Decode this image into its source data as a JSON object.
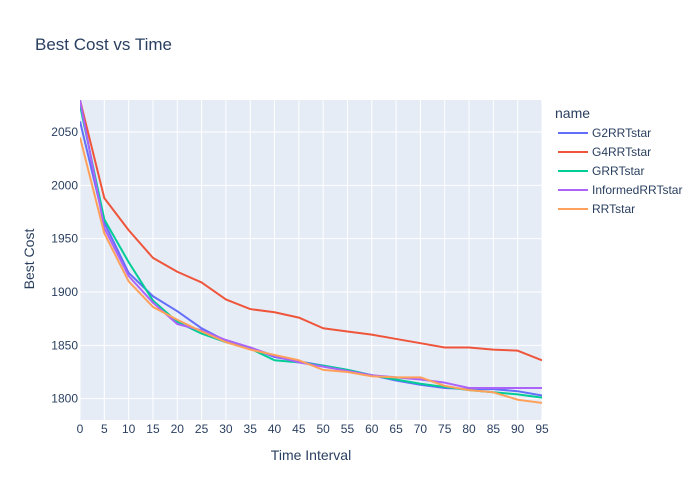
{
  "chart_data": {
    "type": "line",
    "title": "Best Cost vs Time",
    "xlabel": "Time Interval",
    "ylabel": "Best Cost",
    "legend_title": "name",
    "legend_position": "right",
    "grid": true,
    "background_color": "#e5ecf6",
    "xlim": [
      0,
      95
    ],
    "ylim": [
      1780,
      2080
    ],
    "x_ticks": [
      0,
      5,
      10,
      15,
      20,
      25,
      30,
      35,
      40,
      45,
      50,
      55,
      60,
      65,
      70,
      75,
      80,
      85,
      90,
      95
    ],
    "y_ticks": [
      1800,
      1850,
      1900,
      1950,
      2000,
      2050
    ],
    "x": [
      0,
      5,
      10,
      15,
      20,
      25,
      30,
      35,
      40,
      45,
      50,
      55,
      60,
      65,
      70,
      75,
      80,
      85,
      90,
      95
    ],
    "series": [
      {
        "name": "G2RRTstar",
        "color": "#636efa",
        "values": [
          2060,
          1965,
          1918,
          1896,
          1882,
          1866,
          1854,
          1848,
          1839,
          1835,
          1831,
          1827,
          1822,
          1817,
          1813,
          1810,
          1809,
          1809,
          1807,
          1803
        ]
      },
      {
        "name": "G4RRTstar",
        "color": "#ef553b",
        "values": [
          2080,
          1988,
          1958,
          1932,
          1919,
          1909,
          1893,
          1884,
          1881,
          1876,
          1866,
          1863,
          1860,
          1856,
          1852,
          1848,
          1848,
          1846,
          1845,
          1836
        ]
      },
      {
        "name": "GRRTstar",
        "color": "#00cc96",
        "values": [
          2075,
          1968,
          1928,
          1892,
          1872,
          1861,
          1853,
          1847,
          1836,
          1834,
          1831,
          1827,
          1822,
          1818,
          1814,
          1811,
          1808,
          1806,
          1804,
          1801
        ]
      },
      {
        "name": "InformedRRTstar",
        "color": "#ab63fa",
        "values": [
          2080,
          1960,
          1915,
          1890,
          1870,
          1864,
          1855,
          1848,
          1840,
          1834,
          1830,
          1826,
          1822,
          1820,
          1818,
          1815,
          1810,
          1810,
          1810,
          1810
        ]
      },
      {
        "name": "RRTstar",
        "color": "#ffa15a",
        "values": [
          2045,
          1955,
          1910,
          1886,
          1874,
          1863,
          1853,
          1846,
          1841,
          1836,
          1827,
          1825,
          1821,
          1820,
          1820,
          1812,
          1808,
          1806,
          1799,
          1796
        ]
      }
    ]
  }
}
